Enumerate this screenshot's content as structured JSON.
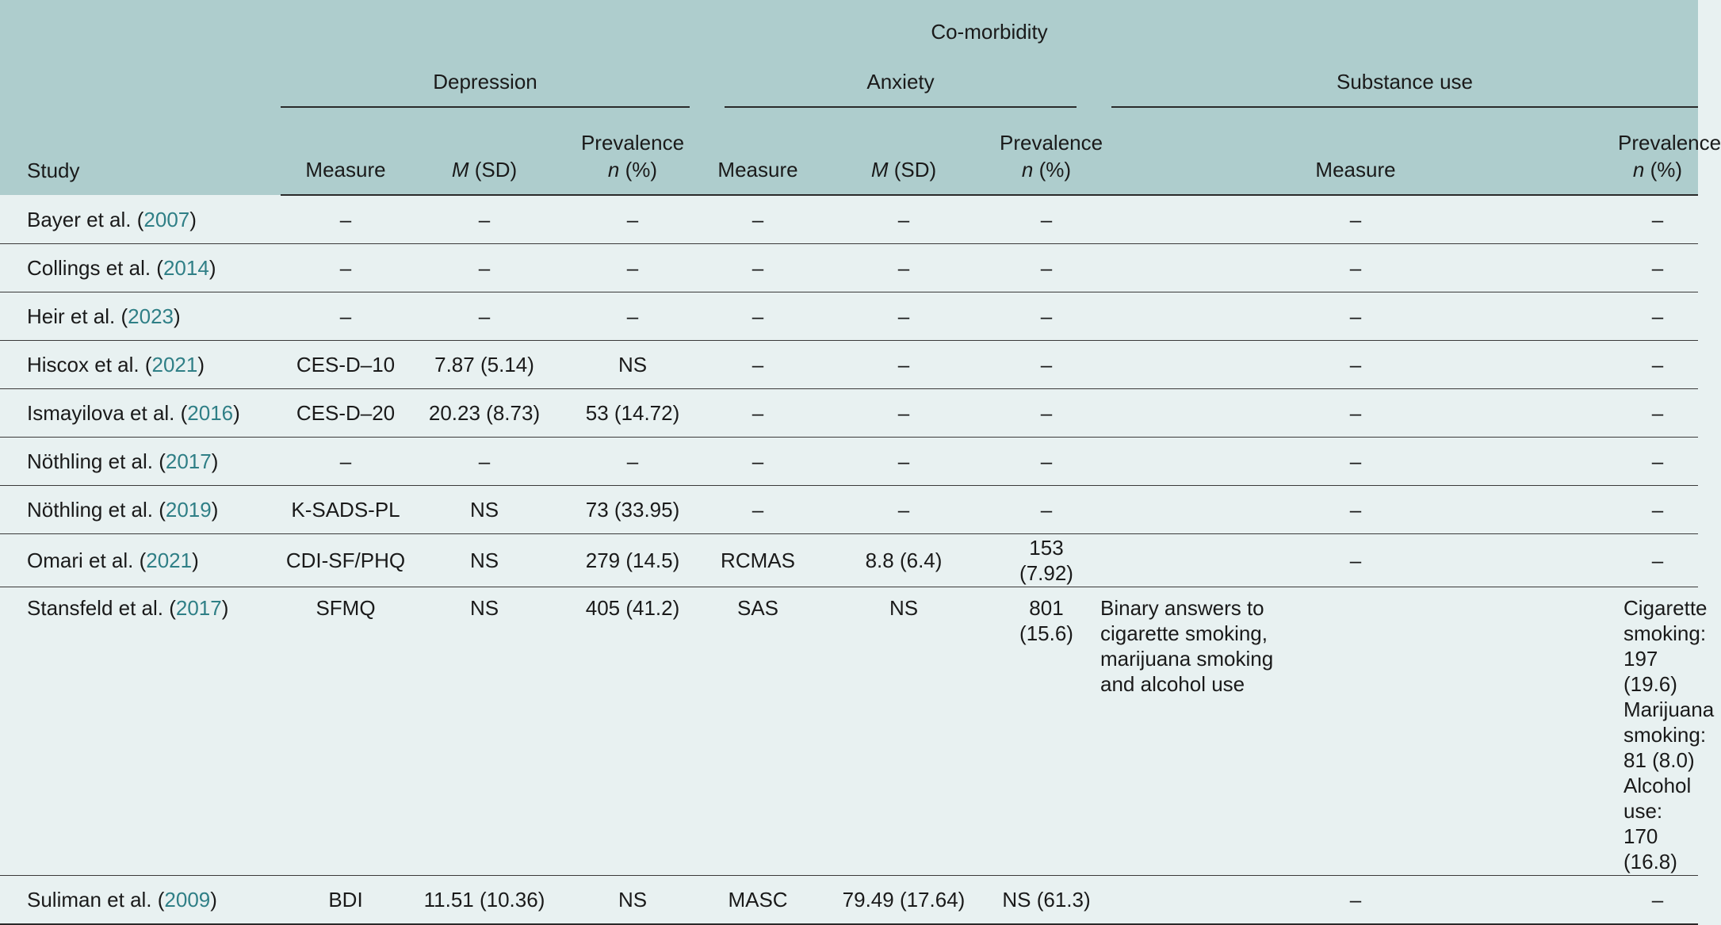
{
  "header": {
    "comorbidity": "Co-morbidity",
    "groups": {
      "depression": "Depression",
      "anxiety": "Anxiety",
      "substance": "Substance use"
    },
    "study": "Study",
    "measure": "Measure",
    "m_italic": "M",
    "sd": " (SD)",
    "prevalence": "Prevalence",
    "n_italic": "n",
    "pct": " (%)"
  },
  "rows": [
    {
      "author": "Bayer et al. (",
      "year": "2007",
      "close": ")",
      "dep_measure": "–",
      "dep_msd": "–",
      "dep_prev": "–",
      "anx_measure": "–",
      "anx_msd": "–",
      "anx_prev": "–",
      "su_measure": "–",
      "su_prev": "–"
    },
    {
      "author": "Collings et al. (",
      "year": "2014",
      "close": ")",
      "dep_measure": "–",
      "dep_msd": "–",
      "dep_prev": "–",
      "anx_measure": "–",
      "anx_msd": "–",
      "anx_prev": "–",
      "su_measure": "–",
      "su_prev": "–"
    },
    {
      "author": "Heir et al. (",
      "year": "2023",
      "close": ")",
      "dep_measure": "–",
      "dep_msd": "–",
      "dep_prev": "–",
      "anx_measure": "–",
      "anx_msd": "–",
      "anx_prev": "–",
      "su_measure": "–",
      "su_prev": "–"
    },
    {
      "author": "Hiscox et al. (",
      "year": "2021",
      "close": ")",
      "dep_measure": "CES-D–10",
      "dep_msd": "7.87 (5.14)",
      "dep_prev": "NS",
      "anx_measure": "–",
      "anx_msd": "–",
      "anx_prev": "–",
      "su_measure": "–",
      "su_prev": "–"
    },
    {
      "author": "Ismayilova et al. (",
      "year": "2016",
      "close": ")",
      "dep_measure": "CES-D–20",
      "dep_msd": "20.23 (8.73)",
      "dep_prev": "53 (14.72)",
      "anx_measure": "–",
      "anx_msd": "–",
      "anx_prev": "–",
      "su_measure": "–",
      "su_prev": "–"
    },
    {
      "author": "Nöthling et al. (",
      "year": "2017",
      "close": ")",
      "dep_measure": "–",
      "dep_msd": "–",
      "dep_prev": "–",
      "anx_measure": "–",
      "anx_msd": "–",
      "anx_prev": "–",
      "su_measure": "–",
      "su_prev": "–"
    },
    {
      "author": "Nöthling et al. (",
      "year": "2019",
      "close": ")",
      "dep_measure": "K-SADS-PL",
      "dep_msd": "NS",
      "dep_prev": "73 (33.95)",
      "anx_measure": "–",
      "anx_msd": "–",
      "anx_prev": "–",
      "su_measure": "–",
      "su_prev": "–"
    },
    {
      "author": "Omari et al. (",
      "year": "2021",
      "close": ")",
      "dep_measure": "CDI-SF/PHQ",
      "dep_msd": "NS",
      "dep_prev": "279 (14.5)",
      "anx_measure": "RCMAS",
      "anx_msd": "8.8 (6.4)",
      "anx_prev": "153 (7.92)",
      "su_measure": "–",
      "su_prev": "–"
    },
    {
      "author": "Stansfeld et al. (",
      "year": "2017",
      "close": ")",
      "dep_measure": "SFMQ",
      "dep_msd": "NS",
      "dep_prev": "405 (41.2)",
      "anx_measure": "SAS",
      "anx_msd": "NS",
      "anx_prev": "801 (15.6)",
      "su_measure_lines": [
        "Binary answers to",
        "cigarette smoking,",
        "marijuana smoking",
        "and alcohol use"
      ],
      "su_prev_lines": [
        "Cigarette smoking: 197 (19.6)",
        "Marijuana smoking: 81 (8.0)",
        "Alcohol use: 170 (16.8)"
      ]
    },
    {
      "author": "Suliman et al. (",
      "year": "2009",
      "close": ")",
      "dep_measure": "BDI",
      "dep_msd": "11.51 (10.36)",
      "dep_prev": "NS",
      "anx_measure": "MASC",
      "anx_msd": "79.49 (17.64)",
      "anx_prev": "NS (61.3)",
      "su_measure": "–",
      "su_prev": "–"
    }
  ]
}
